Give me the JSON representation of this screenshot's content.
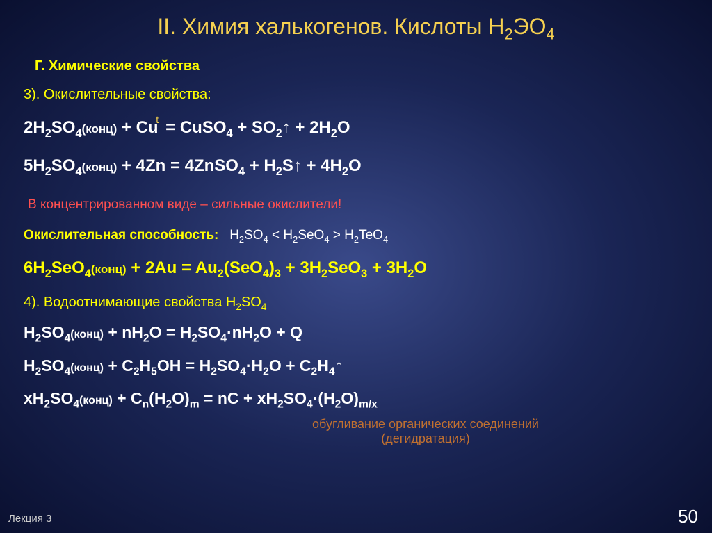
{
  "title": "II. Химия халькогенов. Кислоты Н₂ЭО₄",
  "section_g": "Г. Химические свойства",
  "section_3": "3). Окислительные свойства:",
  "eq1_left": "2H₂SO₄(конц) + Cu ",
  "eq1_t": "t",
  "eq1_right": "= CuSO₄ + SO₂↑ + 2H₂O",
  "eq2": "5H₂SO₄(конц) + 4Zn = 4ZnSO₄ + H₂S↑ + 4H₂O",
  "note_red": "В концентрированном виде  –  сильные окислители!",
  "capability_label": "Окислительная способность:",
  "capability_order": "H₂SO₄ < H₂SeO₄ > H₂TeO₄",
  "eq3": "6H₂SeO₄(конц) + 2Au = Au₂(SeO₄)₃ + 3H₂SeO₃ + 3H₂O",
  "section_4": "4). Водоотнимающие свойства H₂SO₄",
  "eq4": "H₂SO₄(конц) + nH₂O = H₂SO₄·nH₂O + Q",
  "eq5": "H₂SO₄(конц) + C₂H₅OH = H₂SO₄·H₂O + C₂H₄↑",
  "eq6": "xH₂SO₄(конц) + Cₙ(H₂O)ₘ = nC + xH₂SO₄·(H₂O)ₘ/ₓ",
  "carbon_line1": "обугливание органических соединений",
  "carbon_line2": "(дегидратация)",
  "lecture": "Лекция 3",
  "page": "50",
  "colors": {
    "title": "#f5d050",
    "headings": "#ffff00",
    "equations_white": "#ffffff",
    "note": "#ff5050",
    "carbon": "#c07030",
    "bg_center": "#3a4a8a",
    "bg_edge": "#0a1030"
  }
}
